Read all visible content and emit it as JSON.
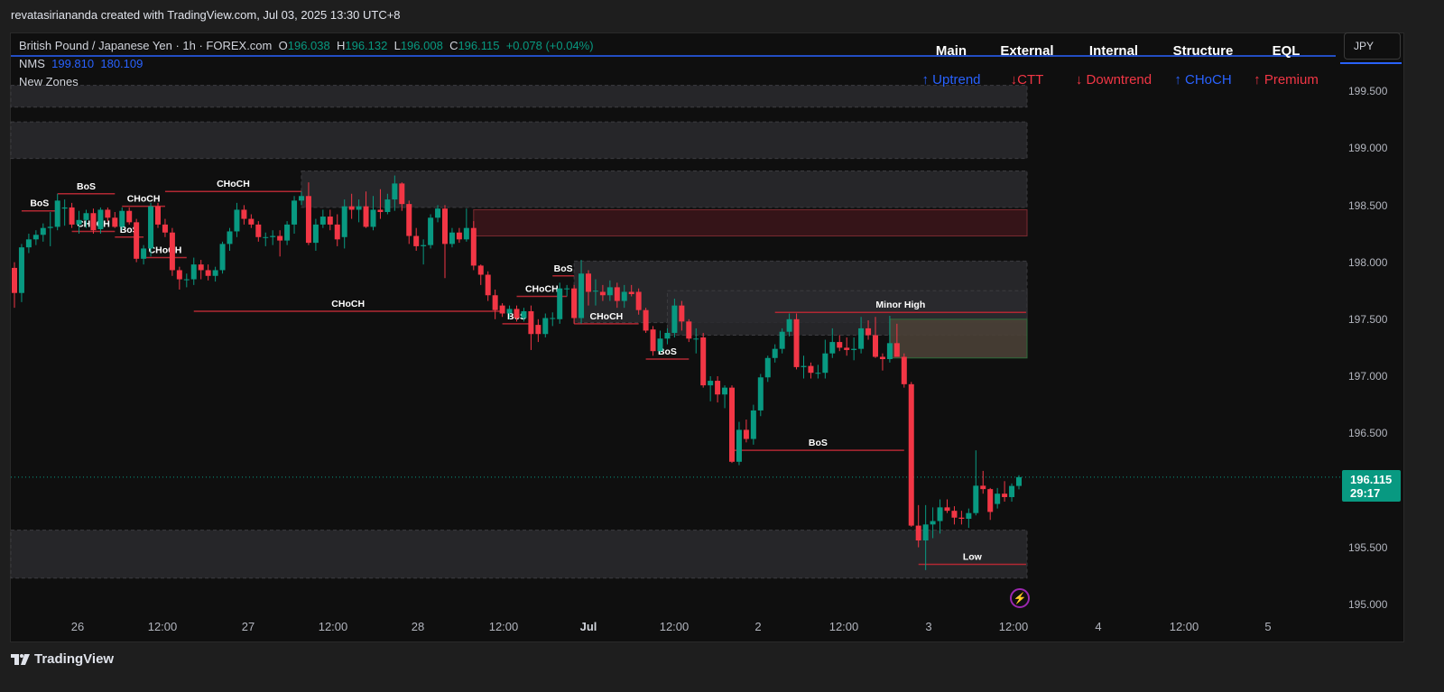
{
  "credit": "revatasiriananda created with TradingView.com, Jul 03, 2025 13:30 UTC+8",
  "symbol": {
    "title": "British Pound / Japanese Yen · 1h · FOREX.com",
    "o_label": "O",
    "o": "196.038",
    "h_label": "H",
    "h": "196.132",
    "l_label": "L",
    "l": "196.008",
    "c_label": "C",
    "c": "196.115",
    "change": "+0.078 (+0.04%)"
  },
  "indicators": {
    "nms_label": "NMS",
    "nms_v1": "199.810",
    "nms_v2": "180.109",
    "zones_label": "New Zones"
  },
  "table": {
    "headers": [
      "Main",
      "External",
      "Internal",
      "Structure",
      "EQL"
    ],
    "values": [
      "↑ Uptrend",
      "↓CTT",
      "↓ Downtrend",
      "↑ CHoCH",
      "↑ Premium"
    ]
  },
  "currency_button": "JPY",
  "price_axis": [
    "199.500",
    "199.000",
    "198.500",
    "198.000",
    "197.500",
    "197.000",
    "196.500",
    "195.500",
    "195.000"
  ],
  "current_price": {
    "value": "196.115",
    "countdown": "29:17"
  },
  "time_axis": [
    "26",
    "12:00",
    "27",
    "12:00",
    "28",
    "12:00",
    "Jul",
    "12:00",
    "2",
    "12:00",
    "3",
    "12:00",
    "4",
    "12:00",
    "5"
  ],
  "footer": {
    "brand": "TradingView"
  },
  "colors": {
    "up": "#089981",
    "down": "#f23645",
    "accent": "#2962ff",
    "zone": "#2a2a2e",
    "supply": "#3a1519",
    "premium": "#4a4036",
    "alert": "#9c27b0"
  },
  "icons": {
    "alert": "lightning-alert-icon",
    "logo": "tradingview-logo-icon"
  },
  "chart_data": {
    "type": "candlestick",
    "interval": "1h",
    "ylim": [
      195.0,
      199.5
    ],
    "candles": [
      [
        197.95,
        198.0,
        197.6,
        197.73
      ],
      [
        197.73,
        198.16,
        197.65,
        198.13
      ],
      [
        198.13,
        198.25,
        198.08,
        198.2
      ],
      [
        198.2,
        198.28,
        198.15,
        198.24
      ],
      [
        198.24,
        198.34,
        198.18,
        198.3
      ],
      [
        198.3,
        198.44,
        198.14,
        198.31
      ],
      [
        198.31,
        198.6,
        198.28,
        198.54
      ],
      [
        198.47,
        198.55,
        198.32,
        198.48
      ],
      [
        198.48,
        198.52,
        198.3,
        198.33
      ],
      [
        198.33,
        198.45,
        198.25,
        198.37
      ],
      [
        198.37,
        198.46,
        198.3,
        198.43
      ],
      [
        198.43,
        198.47,
        198.25,
        198.28
      ],
      [
        198.29,
        198.48,
        198.25,
        198.46
      ],
      [
        198.46,
        198.48,
        198.36,
        198.39
      ],
      [
        198.39,
        198.44,
        198.3,
        198.31
      ],
      [
        198.31,
        198.48,
        198.28,
        198.45
      ],
      [
        198.45,
        198.48,
        198.33,
        198.35
      ],
      [
        198.35,
        198.38,
        198.0,
        198.03
      ],
      [
        198.03,
        198.15,
        197.98,
        198.12
      ],
      [
        198.12,
        198.52,
        198.05,
        198.49
      ],
      [
        198.49,
        198.52,
        198.3,
        198.33
      ],
      [
        198.33,
        198.38,
        198.22,
        198.26
      ],
      [
        198.26,
        198.3,
        197.88,
        197.93
      ],
      [
        197.93,
        197.96,
        197.76,
        197.85
      ],
      [
        197.85,
        197.9,
        197.78,
        197.85
      ],
      [
        197.85,
        198.04,
        197.8,
        197.98
      ],
      [
        197.98,
        198.02,
        197.85,
        197.93
      ],
      [
        197.93,
        197.98,
        197.84,
        197.88
      ],
      [
        197.88,
        197.96,
        197.83,
        197.93
      ],
      [
        197.93,
        198.18,
        197.9,
        198.16
      ],
      [
        198.16,
        198.3,
        198.1,
        198.27
      ],
      [
        198.27,
        198.52,
        198.22,
        198.46
      ],
      [
        198.46,
        198.5,
        198.33,
        198.38
      ],
      [
        198.38,
        198.42,
        198.3,
        198.33
      ],
      [
        198.33,
        198.36,
        198.18,
        198.22
      ],
      [
        198.22,
        198.26,
        198.14,
        198.22
      ],
      [
        198.22,
        198.28,
        198.15,
        198.23
      ],
      [
        198.23,
        198.28,
        198.05,
        198.19
      ],
      [
        198.19,
        198.36,
        198.15,
        198.33
      ],
      [
        198.33,
        198.58,
        198.25,
        198.54
      ],
      [
        198.54,
        198.62,
        198.5,
        198.58
      ],
      [
        198.58,
        198.7,
        198.15,
        198.17
      ],
      [
        198.17,
        198.38,
        198.1,
        198.33
      ],
      [
        198.33,
        198.46,
        198.3,
        198.4
      ],
      [
        198.4,
        198.46,
        198.28,
        198.33
      ],
      [
        198.33,
        198.42,
        198.14,
        198.2
      ],
      [
        198.22,
        198.55,
        198.12,
        198.49
      ],
      [
        198.49,
        198.6,
        198.38,
        198.46
      ],
      [
        198.46,
        198.55,
        198.35,
        198.49
      ],
      [
        198.49,
        198.62,
        198.3,
        198.31
      ],
      [
        198.31,
        198.58,
        198.28,
        198.46
      ],
      [
        198.46,
        198.64,
        198.38,
        198.44
      ],
      [
        198.44,
        198.6,
        198.42,
        198.55
      ],
      [
        198.55,
        198.76,
        198.45,
        198.69
      ],
      [
        198.69,
        198.7,
        198.45,
        198.51
      ],
      [
        198.51,
        198.54,
        198.16,
        198.23
      ],
      [
        198.23,
        198.3,
        198.1,
        198.14
      ],
      [
        198.14,
        198.2,
        197.98,
        198.15
      ],
      [
        198.15,
        198.42,
        198.12,
        198.39
      ],
      [
        198.39,
        198.5,
        198.35,
        198.47
      ],
      [
        198.47,
        198.5,
        197.86,
        198.16
      ],
      [
        198.16,
        198.3,
        198.13,
        198.26
      ],
      [
        198.26,
        198.3,
        198.17,
        198.2
      ],
      [
        198.2,
        198.47,
        198.18,
        198.3
      ],
      [
        198.3,
        198.36,
        197.93,
        197.97
      ],
      [
        197.97,
        197.98,
        197.8,
        197.89
      ],
      [
        197.89,
        197.92,
        197.66,
        197.71
      ],
      [
        197.71,
        197.76,
        197.5,
        197.58
      ],
      [
        197.62,
        197.64,
        197.52,
        197.55
      ],
      [
        197.55,
        197.62,
        197.5,
        197.59
      ],
      [
        197.59,
        197.62,
        197.48,
        197.51
      ],
      [
        197.51,
        197.6,
        197.48,
        197.57
      ],
      [
        197.57,
        197.62,
        197.23,
        197.37
      ],
      [
        197.45,
        197.5,
        197.3,
        197.37
      ],
      [
        197.37,
        197.55,
        197.34,
        197.51
      ],
      [
        197.51,
        197.56,
        197.44,
        197.51
      ],
      [
        197.5,
        197.82,
        197.46,
        197.77
      ],
      [
        197.77,
        197.8,
        197.7,
        197.77
      ],
      [
        197.77,
        197.8,
        197.46,
        197.51
      ],
      [
        197.51,
        198.02,
        197.46,
        197.9
      ],
      [
        197.9,
        197.93,
        197.62,
        197.74
      ],
      [
        197.75,
        197.85,
        197.62,
        197.75
      ],
      [
        197.74,
        197.8,
        197.66,
        197.71
      ],
      [
        197.71,
        197.84,
        197.66,
        197.78
      ],
      [
        197.78,
        197.82,
        197.6,
        197.66
      ],
      [
        197.66,
        197.8,
        197.6,
        197.74
      ],
      [
        197.74,
        197.8,
        197.7,
        197.72
      ],
      [
        197.74,
        197.77,
        197.54,
        197.58
      ],
      [
        197.58,
        197.6,
        197.38,
        197.4
      ],
      [
        197.41,
        197.44,
        197.18,
        197.22
      ],
      [
        197.22,
        197.4,
        197.2,
        197.33
      ],
      [
        197.33,
        197.42,
        197.28,
        197.38
      ],
      [
        197.38,
        197.68,
        197.34,
        197.62
      ],
      [
        197.62,
        197.66,
        197.4,
        197.48
      ],
      [
        197.48,
        197.5,
        197.3,
        197.33
      ],
      [
        197.33,
        197.42,
        197.2,
        197.33
      ],
      [
        197.34,
        197.38,
        196.9,
        196.92
      ],
      [
        196.92,
        197.0,
        196.78,
        196.96
      ],
      [
        196.96,
        197.0,
        196.77,
        196.84
      ],
      [
        196.84,
        196.92,
        196.72,
        196.9
      ],
      [
        196.9,
        196.92,
        196.24,
        196.25
      ],
      [
        196.25,
        196.6,
        196.22,
        196.53
      ],
      [
        196.53,
        196.62,
        196.42,
        196.45
      ],
      [
        196.45,
        196.75,
        196.4,
        196.7
      ],
      [
        196.7,
        197.02,
        196.65,
        196.99
      ],
      [
        196.99,
        197.18,
        196.95,
        197.16
      ],
      [
        197.16,
        197.28,
        197.12,
        197.24
      ],
      [
        197.24,
        197.42,
        197.2,
        197.39
      ],
      [
        197.39,
        197.55,
        197.35,
        197.5
      ],
      [
        197.5,
        197.55,
        197.06,
        197.08
      ],
      [
        197.08,
        197.18,
        196.98,
        197.09
      ],
      [
        197.09,
        197.12,
        196.98,
        197.03
      ],
      [
        197.03,
        197.1,
        196.98,
        197.03
      ],
      [
        197.03,
        197.32,
        196.98,
        197.2
      ],
      [
        197.2,
        197.42,
        197.16,
        197.3
      ],
      [
        197.3,
        197.36,
        197.22,
        197.25
      ],
      [
        197.25,
        197.34,
        197.18,
        197.23
      ],
      [
        197.23,
        197.34,
        197.14,
        197.24
      ],
      [
        197.24,
        197.52,
        197.2,
        197.42
      ],
      [
        197.42,
        197.49,
        197.32,
        197.36
      ],
      [
        197.36,
        197.52,
        197.16,
        197.17
      ],
      [
        197.17,
        197.2,
        197.05,
        197.15
      ],
      [
        197.15,
        197.53,
        197.12,
        197.29
      ],
      [
        197.29,
        197.46,
        197.18,
        197.17
      ],
      [
        197.17,
        197.2,
        196.9,
        196.93
      ],
      [
        196.93,
        196.95,
        195.68,
        195.69
      ],
      [
        195.69,
        195.87,
        195.5,
        195.56
      ],
      [
        195.56,
        195.87,
        195.3,
        195.7
      ],
      [
        195.7,
        195.85,
        195.58,
        195.73
      ],
      [
        195.73,
        195.92,
        195.62,
        195.85
      ],
      [
        195.85,
        195.92,
        195.8,
        195.82
      ],
      [
        195.82,
        195.86,
        195.7,
        195.76
      ],
      [
        195.76,
        195.82,
        195.7,
        195.75
      ],
      [
        195.75,
        195.84,
        195.67,
        195.8
      ],
      [
        195.8,
        196.35,
        195.78,
        196.04
      ],
      [
        196.04,
        196.17,
        195.97,
        196.01
      ],
      [
        196.01,
        196.02,
        195.74,
        195.81
      ],
      [
        195.88,
        196.02,
        195.84,
        195.97
      ],
      [
        195.97,
        196.08,
        195.9,
        195.94
      ],
      [
        195.94,
        196.06,
        195.9,
        196.038
      ],
      [
        196.038,
        196.132,
        196.008,
        196.115
      ]
    ],
    "zones": [
      {
        "top": 199.55,
        "bottom": 199.36,
        "from": -1,
        "kind": "zone"
      },
      {
        "top": 199.23,
        "bottom": 198.91,
        "from": -1,
        "kind": "zone"
      },
      {
        "top": 198.8,
        "bottom": 198.48,
        "from": 40,
        "kind": "zone"
      },
      {
        "top": 198.46,
        "bottom": 198.23,
        "from": 64,
        "kind": "supply"
      },
      {
        "top": 198.01,
        "bottom": 197.47,
        "from": 78,
        "kind": "zone"
      },
      {
        "top": 197.75,
        "bottom": 197.36,
        "from": 91,
        "kind": "zone"
      },
      {
        "top": 197.5,
        "bottom": 197.16,
        "from": 122,
        "kind": "premium"
      },
      {
        "top": 195.65,
        "bottom": 195.23,
        "from": -1,
        "kind": "zone"
      }
    ],
    "structures": [
      {
        "label": "BoS",
        "level": 198.45,
        "from": 1,
        "to": 6
      },
      {
        "label": "BoS",
        "level": 198.6,
        "from": 6,
        "to": 14
      },
      {
        "label": "CHoCH",
        "level": 198.27,
        "from": 8,
        "to": 14
      },
      {
        "label": "CHoCH",
        "level": 198.49,
        "from": 15,
        "to": 21
      },
      {
        "label": "BoS",
        "level": 198.22,
        "from": 14,
        "to": 18
      },
      {
        "label": "CHoCH",
        "level": 198.04,
        "from": 18,
        "to": 24
      },
      {
        "label": "CHoCH",
        "level": 198.62,
        "from": 21,
        "to": 40
      },
      {
        "label": "CHoCH",
        "level": 197.57,
        "from": 25,
        "to": 68
      },
      {
        "label": "BoS",
        "level": 197.46,
        "from": 68,
        "to": 72
      },
      {
        "label": "CHoCH",
        "level": 197.7,
        "from": 70,
        "to": 77
      },
      {
        "label": "BoS",
        "level": 197.88,
        "from": 75,
        "to": 78
      },
      {
        "label": "CHoCH",
        "level": 197.46,
        "from": 78,
        "to": 87
      },
      {
        "label": "BoS",
        "level": 197.15,
        "from": 88,
        "to": 94
      },
      {
        "label": "BoS",
        "level": 196.35,
        "from": 100,
        "to": 124
      },
      {
        "label": "Minor High",
        "level": 197.56,
        "from": 106,
        "to": 141
      },
      {
        "label": "Low",
        "level": 195.35,
        "from": 126,
        "to": 141
      }
    ]
  }
}
